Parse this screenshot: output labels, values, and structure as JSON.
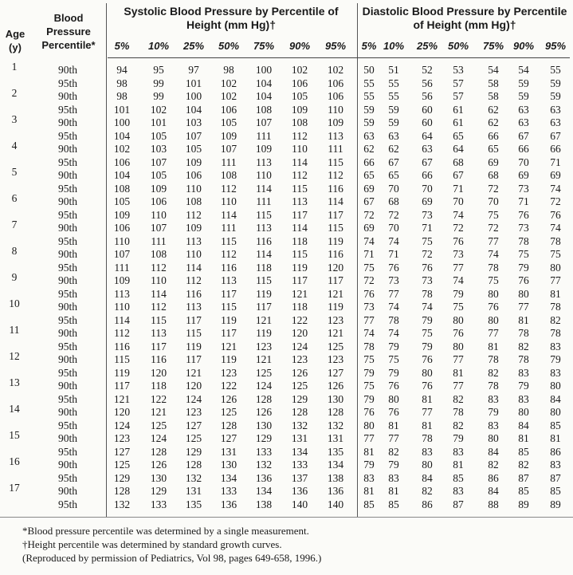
{
  "header": {
    "age": "Age (y)",
    "percentile": "Blood Pressure Percentile*",
    "systolic": "Systolic Blood Pressure by Percentile of Height (mm Hg)†",
    "diastolic": "Diastolic Blood Pressure by Percentile of Height (mm Hg)†",
    "systolic_columns": [
      "5%",
      "10%",
      "25%",
      "50%",
      "75%",
      "90%",
      "95%"
    ],
    "diastolic_columns": [
      "5%",
      "10%",
      "25%",
      "50%",
      "75%",
      "90%",
      "95%"
    ]
  },
  "rows": [
    {
      "age": "1",
      "percentile": "90th",
      "systolic": [
        94,
        95,
        97,
        98,
        100,
        102,
        102
      ],
      "diastolic": [
        50,
        51,
        52,
        53,
        54,
        54,
        55
      ]
    },
    {
      "percentile": "95th",
      "systolic": [
        98,
        99,
        101,
        102,
        104,
        106,
        106
      ],
      "diastolic": [
        55,
        55,
        56,
        57,
        58,
        59,
        59
      ]
    },
    {
      "age": "2",
      "percentile": "90th",
      "systolic": [
        98,
        99,
        100,
        102,
        104,
        105,
        106
      ],
      "diastolic": [
        55,
        55,
        56,
        57,
        58,
        59,
        59
      ]
    },
    {
      "percentile": "95th",
      "systolic": [
        101,
        102,
        104,
        106,
        108,
        109,
        110
      ],
      "diastolic": [
        59,
        59,
        60,
        61,
        62,
        63,
        63
      ]
    },
    {
      "age": "3",
      "percentile": "90th",
      "systolic": [
        100,
        101,
        103,
        105,
        107,
        108,
        109
      ],
      "diastolic": [
        59,
        59,
        60,
        61,
        62,
        63,
        63
      ]
    },
    {
      "percentile": "95th",
      "systolic": [
        104,
        105,
        107,
        109,
        111,
        112,
        113
      ],
      "diastolic": [
        63,
        63,
        64,
        65,
        66,
        67,
        67
      ]
    },
    {
      "age": "4",
      "percentile": "90th",
      "systolic": [
        102,
        103,
        105,
        107,
        109,
        110,
        111
      ],
      "diastolic": [
        62,
        62,
        63,
        64,
        65,
        66,
        66
      ]
    },
    {
      "percentile": "95th",
      "systolic": [
        106,
        107,
        109,
        111,
        113,
        114,
        115
      ],
      "diastolic": [
        66,
        67,
        67,
        68,
        69,
        70,
        71
      ]
    },
    {
      "age": "5",
      "percentile": "90th",
      "systolic": [
        104,
        105,
        106,
        108,
        110,
        112,
        112
      ],
      "diastolic": [
        65,
        65,
        66,
        67,
        68,
        69,
        69
      ]
    },
    {
      "percentile": "95th",
      "systolic": [
        108,
        109,
        110,
        112,
        114,
        115,
        116
      ],
      "diastolic": [
        69,
        70,
        70,
        71,
        72,
        73,
        74
      ]
    },
    {
      "age": "6",
      "percentile": "90th",
      "systolic": [
        105,
        106,
        108,
        110,
        111,
        113,
        114
      ],
      "diastolic": [
        67,
        68,
        69,
        70,
        70,
        71,
        72
      ]
    },
    {
      "percentile": "95th",
      "systolic": [
        109,
        110,
        112,
        114,
        115,
        117,
        117
      ],
      "diastolic": [
        72,
        72,
        73,
        74,
        75,
        76,
        76
      ]
    },
    {
      "age": "7",
      "percentile": "90th",
      "systolic": [
        106,
        107,
        109,
        111,
        113,
        114,
        115
      ],
      "diastolic": [
        69,
        70,
        71,
        72,
        72,
        73,
        74
      ]
    },
    {
      "percentile": "95th",
      "systolic": [
        110,
        111,
        113,
        115,
        116,
        118,
        119
      ],
      "diastolic": [
        74,
        74,
        75,
        76,
        77,
        78,
        78
      ]
    },
    {
      "age": "8",
      "percentile": "90th",
      "systolic": [
        107,
        108,
        110,
        112,
        114,
        115,
        116
      ],
      "diastolic": [
        71,
        71,
        72,
        73,
        74,
        75,
        75
      ]
    },
    {
      "percentile": "95th",
      "systolic": [
        111,
        112,
        114,
        116,
        118,
        119,
        120
      ],
      "diastolic": [
        75,
        76,
        76,
        77,
        78,
        79,
        80
      ]
    },
    {
      "age": "9",
      "percentile": "90th",
      "systolic": [
        109,
        110,
        112,
        113,
        115,
        117,
        117
      ],
      "diastolic": [
        72,
        73,
        73,
        74,
        75,
        76,
        77
      ]
    },
    {
      "percentile": "95th",
      "systolic": [
        113,
        114,
        116,
        117,
        119,
        121,
        121
      ],
      "diastolic": [
        76,
        77,
        78,
        79,
        80,
        80,
        81
      ]
    },
    {
      "age": "10",
      "percentile": "90th",
      "systolic": [
        110,
        112,
        113,
        115,
        117,
        118,
        119
      ],
      "diastolic": [
        73,
        74,
        74,
        75,
        76,
        77,
        78
      ]
    },
    {
      "percentile": "95th",
      "systolic": [
        114,
        115,
        117,
        119,
        121,
        122,
        123
      ],
      "diastolic": [
        77,
        78,
        79,
        80,
        80,
        81,
        82
      ]
    },
    {
      "age": "11",
      "percentile": "90th",
      "systolic": [
        112,
        113,
        115,
        117,
        119,
        120,
        121
      ],
      "diastolic": [
        74,
        74,
        75,
        76,
        77,
        78,
        78
      ]
    },
    {
      "percentile": "95th",
      "systolic": [
        116,
        117,
        119,
        121,
        123,
        124,
        125
      ],
      "diastolic": [
        78,
        79,
        79,
        80,
        81,
        82,
        83
      ]
    },
    {
      "age": "12",
      "percentile": "90th",
      "systolic": [
        115,
        116,
        117,
        119,
        121,
        123,
        123
      ],
      "diastolic": [
        75,
        75,
        76,
        77,
        78,
        78,
        79
      ]
    },
    {
      "percentile": "95th",
      "systolic": [
        119,
        120,
        121,
        123,
        125,
        126,
        127
      ],
      "diastolic": [
        79,
        79,
        80,
        81,
        82,
        83,
        83
      ]
    },
    {
      "age": "13",
      "percentile": "90th",
      "systolic": [
        117,
        118,
        120,
        122,
        124,
        125,
        126
      ],
      "diastolic": [
        75,
        76,
        76,
        77,
        78,
        79,
        80
      ]
    },
    {
      "percentile": "95th",
      "systolic": [
        121,
        122,
        124,
        126,
        128,
        129,
        130
      ],
      "diastolic": [
        79,
        80,
        81,
        82,
        83,
        83,
        84
      ]
    },
    {
      "age": "14",
      "percentile": "90th",
      "systolic": [
        120,
        121,
        123,
        125,
        126,
        128,
        128
      ],
      "diastolic": [
        76,
        76,
        77,
        78,
        79,
        80,
        80
      ]
    },
    {
      "percentile": "95th",
      "systolic": [
        124,
        125,
        127,
        128,
        130,
        132,
        132
      ],
      "diastolic": [
        80,
        81,
        81,
        82,
        83,
        84,
        85
      ]
    },
    {
      "age": "15",
      "percentile": "90th",
      "systolic": [
        123,
        124,
        125,
        127,
        129,
        131,
        131
      ],
      "diastolic": [
        77,
        77,
        78,
        79,
        80,
        81,
        81
      ]
    },
    {
      "percentile": "95th",
      "systolic": [
        127,
        128,
        129,
        131,
        133,
        134,
        135
      ],
      "diastolic": [
        81,
        82,
        83,
        83,
        84,
        85,
        86
      ]
    },
    {
      "age": "16",
      "percentile": "90th",
      "systolic": [
        125,
        126,
        128,
        130,
        132,
        133,
        134
      ],
      "diastolic": [
        79,
        79,
        80,
        81,
        82,
        82,
        83
      ]
    },
    {
      "percentile": "95th",
      "systolic": [
        129,
        130,
        132,
        134,
        136,
        137,
        138
      ],
      "diastolic": [
        83,
        83,
        84,
        85,
        86,
        87,
        87
      ]
    },
    {
      "age": "17",
      "percentile": "90th",
      "systolic": [
        128,
        129,
        131,
        133,
        134,
        136,
        136
      ],
      "diastolic": [
        81,
        81,
        82,
        83,
        84,
        85,
        85
      ]
    },
    {
      "percentile": "95th",
      "systolic": [
        132,
        133,
        135,
        136,
        138,
        140,
        140
      ],
      "diastolic": [
        85,
        85,
        86,
        87,
        88,
        89,
        89
      ]
    }
  ],
  "footnotes": [
    "*Blood pressure percentile was determined by a single measurement.",
    "†Height percentile was determined by standard growth curves.",
    "(Reproduced by permission of Pediatrics, Vol 98, pages 649-658, 1996.)"
  ]
}
